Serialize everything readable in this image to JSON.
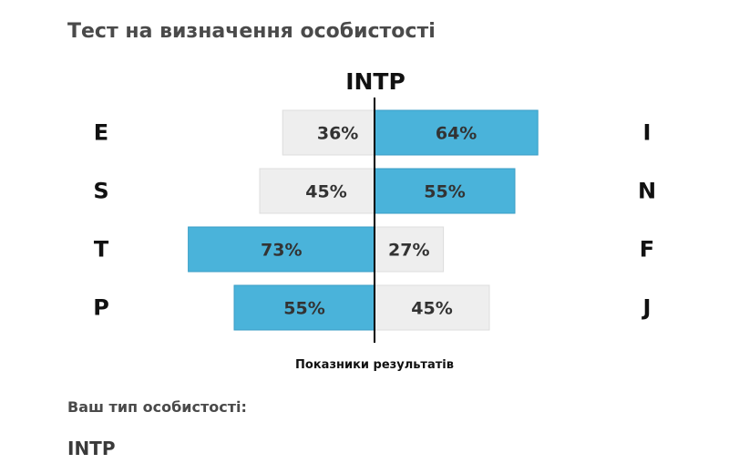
{
  "page": {
    "title": "Тест на визначення особистості",
    "result_label": "Ваш тип особистості:",
    "result_type": "INTP"
  },
  "chart_data": {
    "type": "bar",
    "title": "INTP",
    "xlabel": "Показники результатів",
    "unit": "%",
    "pairs": [
      {
        "left": "E",
        "right": "I",
        "left_value": 36,
        "right_value": 64
      },
      {
        "left": "S",
        "right": "N",
        "left_value": 45,
        "right_value": 55
      },
      {
        "left": "T",
        "right": "F",
        "left_value": 73,
        "right_value": 27
      },
      {
        "left": "P",
        "right": "J",
        "left_value": 55,
        "right_value": 45
      }
    ],
    "colors": {
      "dominant": "#4ab3da",
      "dominant_border": "#3a9ec6",
      "minor": "#eeeeee",
      "minor_border": "#dddddd",
      "axis": "#000000",
      "text": "#333333"
    }
  }
}
